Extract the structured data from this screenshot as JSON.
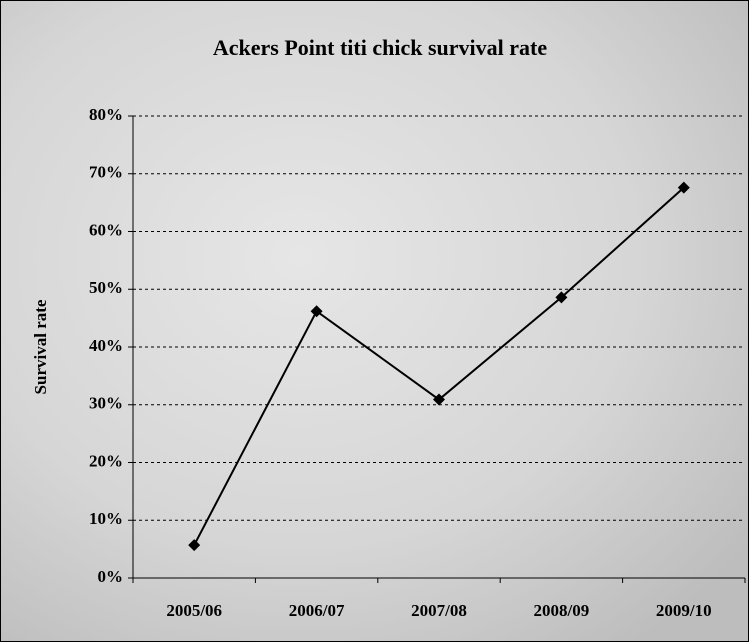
{
  "chart_data": {
    "type": "line",
    "title": "Ackers Point titi chick survival rate",
    "y_label": "Survival rate",
    "categories": [
      "2005/06",
      "2006/07",
      "2007/08",
      "2008/09",
      "2009/10"
    ],
    "series": [
      {
        "name": "Survival rate",
        "color": "#000000",
        "values": [
          5.7,
          46.2,
          30.9,
          48.6,
          67.6
        ]
      }
    ],
    "ylim": [
      0,
      80
    ],
    "yticks": [
      {
        "value": 0,
        "label": "0%"
      },
      {
        "value": 10,
        "label": "10%"
      },
      {
        "value": 20,
        "label": "20%"
      },
      {
        "value": 30,
        "label": "30%"
      },
      {
        "value": 40,
        "label": "40%"
      },
      {
        "value": 50,
        "label": "50%"
      },
      {
        "value": 60,
        "label": "60%"
      },
      {
        "value": 70,
        "label": "70%"
      },
      {
        "value": 80,
        "label": "80%"
      }
    ],
    "grid": true
  }
}
